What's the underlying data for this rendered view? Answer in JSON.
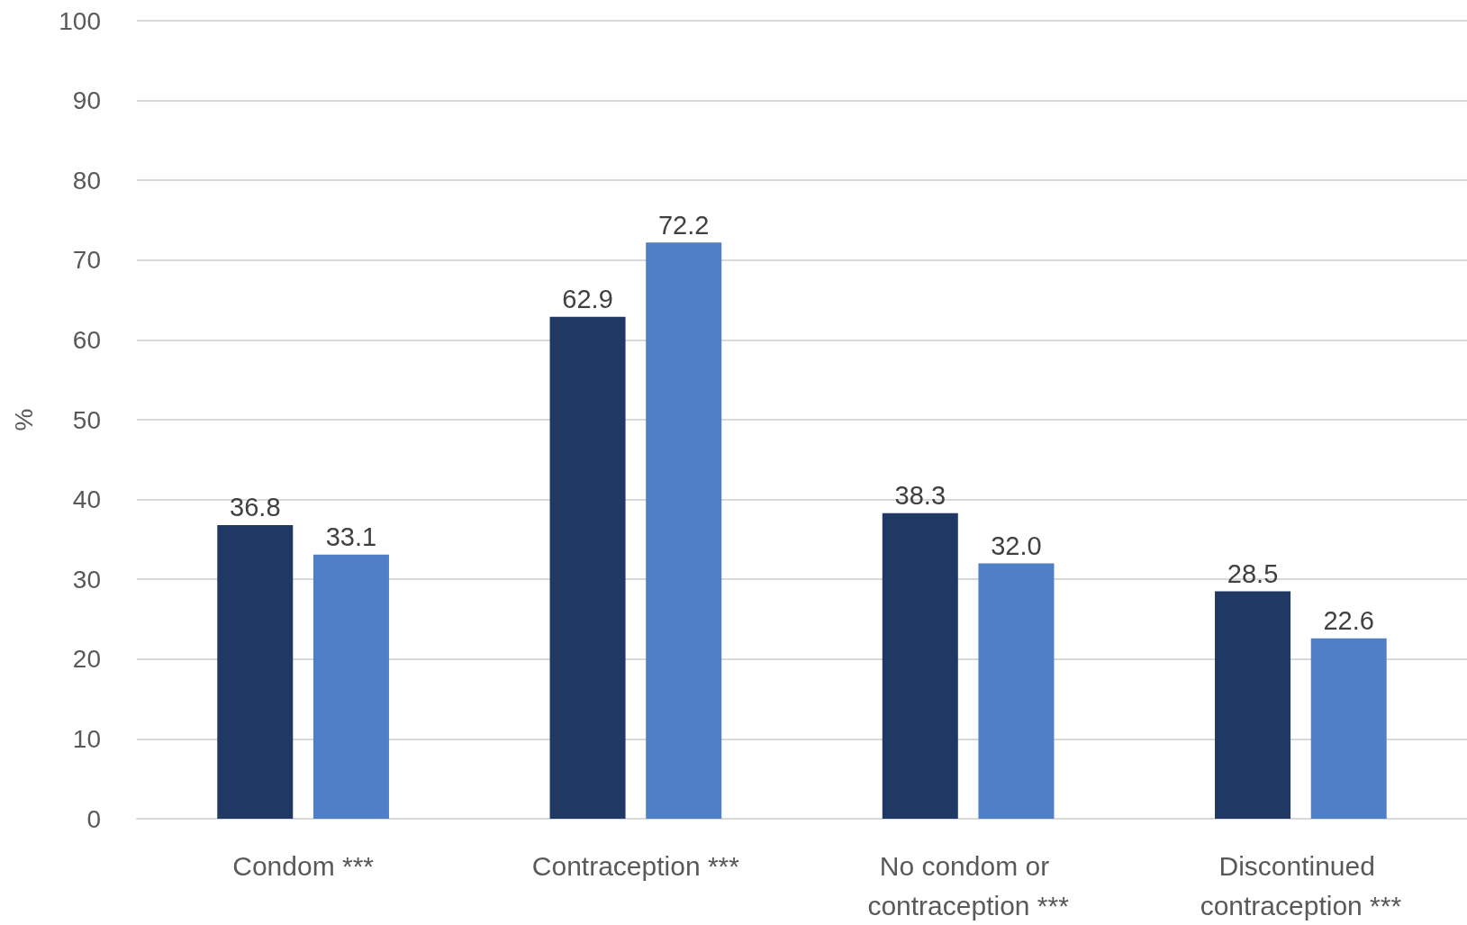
{
  "chart_data": {
    "type": "bar",
    "ylabel": "%",
    "categories": [
      "Condom ***",
      "Contraception ***",
      "No condom or contraception ***",
      "Discontinued contraception ***"
    ],
    "series": [
      {
        "color": "#203864",
        "values": [
          36.8,
          62.9,
          38.3,
          28.5
        ]
      },
      {
        "color": "#4f7fc6",
        "values": [
          33.1,
          72.2,
          32.0,
          22.6
        ],
        "value_labels": [
          "33.1",
          "72.2",
          "32.0",
          "22.6"
        ]
      }
    ],
    "ylim": [
      0,
      100
    ],
    "yticks": [
      0,
      10,
      20,
      30,
      40,
      50,
      60,
      70,
      80,
      90,
      100
    ],
    "grid": "y",
    "data_labels": true
  }
}
